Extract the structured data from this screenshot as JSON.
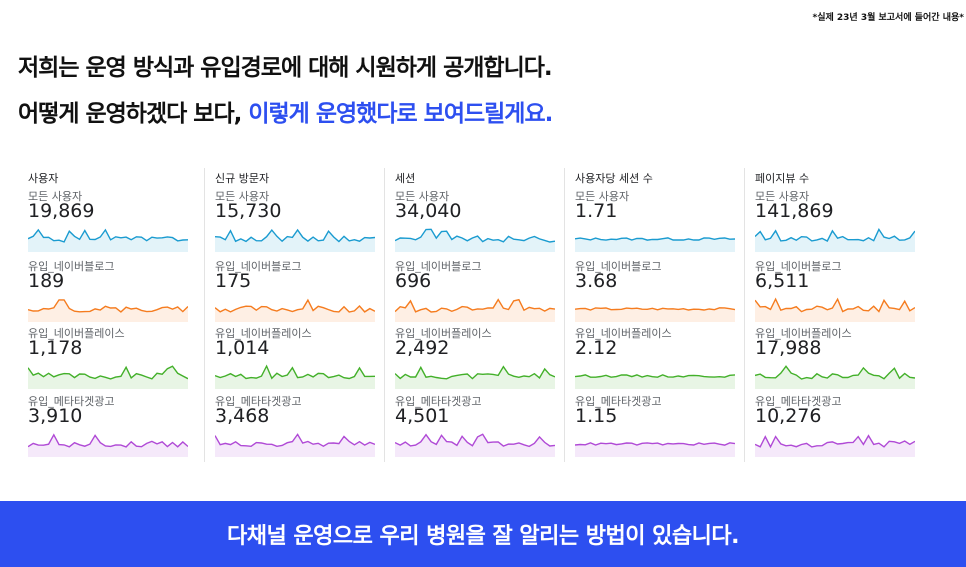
{
  "note": "*실제 23년 3월 보고서에 들어간 내용*",
  "headline": {
    "line1": "저희는 운영 방식과 유입경로에 대해 시원하게 공개합니다.",
    "line2_plain": "어떻게 운영하겠다 보다, ",
    "line2_highlight": "이렇게 운영했다로 보여드릴게요."
  },
  "colors": {
    "highlight": "#2d4ff0",
    "series": [
      "#1a9bd0",
      "#f57c1f",
      "#43b02a",
      "#b04ad6"
    ],
    "banner_bg": "#2d4ff0"
  },
  "columns": [
    {
      "title": "사용자",
      "metrics": [
        {
          "label": "모든 사용자",
          "value": "19,869"
        },
        {
          "label": "유입_네이버블로그",
          "value": "189"
        },
        {
          "label": "유입_네이버플레이스",
          "value": "1,178"
        },
        {
          "label": "유입_메타타겟광고",
          "value": "3,910"
        }
      ]
    },
    {
      "title": "신규 방문자",
      "metrics": [
        {
          "label": "모든 사용자",
          "value": "15,730"
        },
        {
          "label": "유입_네이버블로그",
          "value": "175"
        },
        {
          "label": "유입_네이버플레이스",
          "value": "1,014"
        },
        {
          "label": "유입_메타타겟광고",
          "value": "3,468"
        }
      ]
    },
    {
      "title": "세션",
      "metrics": [
        {
          "label": "모든 사용자",
          "value": "34,040"
        },
        {
          "label": "유입_네이버블로그",
          "value": "696"
        },
        {
          "label": "유입_네이버플레이스",
          "value": "2,492"
        },
        {
          "label": "유입_메타타겟광고",
          "value": "4,501"
        }
      ]
    },
    {
      "title": "사용자당 세션 수",
      "metrics": [
        {
          "label": "모든 사용자",
          "value": "1.71"
        },
        {
          "label": "유입_네이버블로그",
          "value": "3.68"
        },
        {
          "label": "유입_네이버플레이스",
          "value": "2.12"
        },
        {
          "label": "유입_메타타겟광고",
          "value": "1.15"
        }
      ]
    },
    {
      "title": "페이지뷰 수",
      "metrics": [
        {
          "label": "모든 사용자",
          "value": "141,869"
        },
        {
          "label": "유입_네이버블로그",
          "value": "6,511"
        },
        {
          "label": "유입_네이버플레이스",
          "value": "17,988"
        },
        {
          "label": "유입_메타타겟광고",
          "value": "10,276"
        }
      ]
    }
  ],
  "banner": "다채널 운영으로 우리 병원을 잘 알리는 방법이 있습니다."
}
